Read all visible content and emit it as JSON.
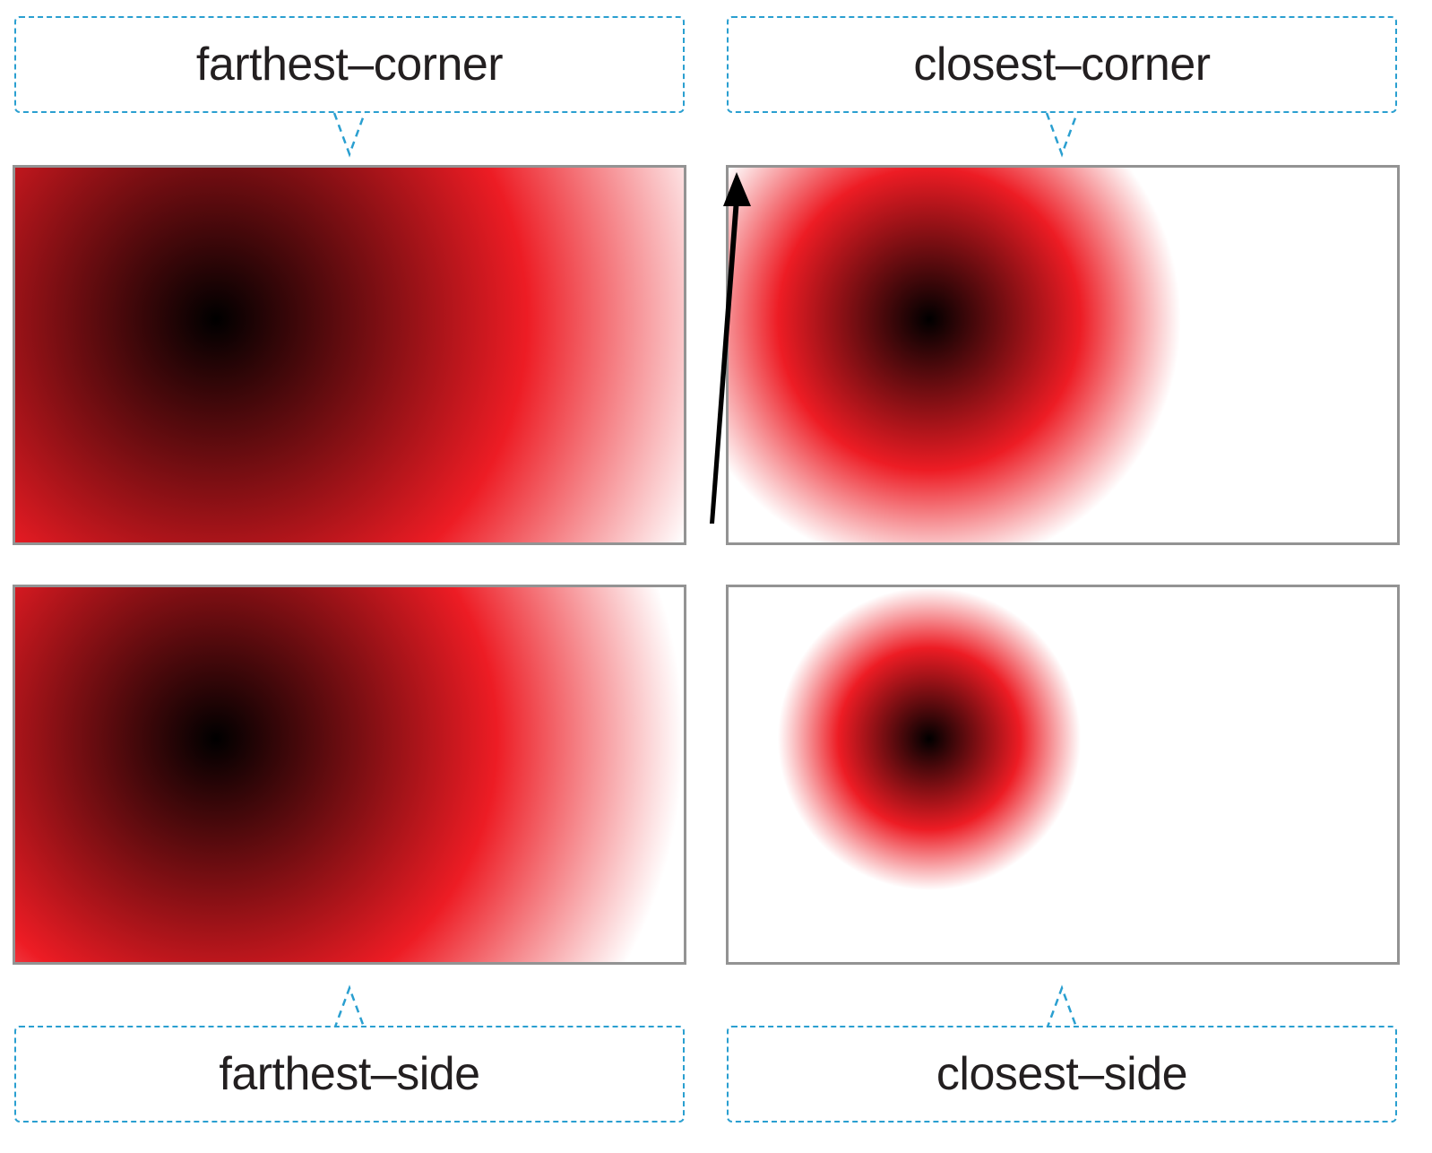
{
  "labels": {
    "farthest_corner": "farthest–corner",
    "closest_corner": "closest–corner",
    "farthest_side": "farthest–side",
    "closest_side": "closest–side"
  },
  "colors": {
    "callout_border": "#2a9fd0",
    "panel_border": "#939393",
    "gradient_center": "#000000",
    "gradient_mid": "#ed1c24",
    "gradient_outer": "#ffffff",
    "arrow": "#000000",
    "text": "#231f20"
  },
  "gradients": [
    {
      "panel": "farthest-corner",
      "shape": "circle",
      "size": "farthest-corner",
      "stops": [
        "black",
        "red",
        "white"
      ]
    },
    {
      "panel": "closest-corner",
      "shape": "circle",
      "size": "closest-corner",
      "stops": [
        "black",
        "red",
        "white"
      ]
    },
    {
      "panel": "farthest-side",
      "shape": "circle",
      "size": "farthest-side",
      "stops": [
        "black",
        "red",
        "white"
      ]
    },
    {
      "panel": "closest-side",
      "shape": "circle",
      "size": "closest-side",
      "stops": [
        "black",
        "red",
        "white"
      ]
    }
  ]
}
